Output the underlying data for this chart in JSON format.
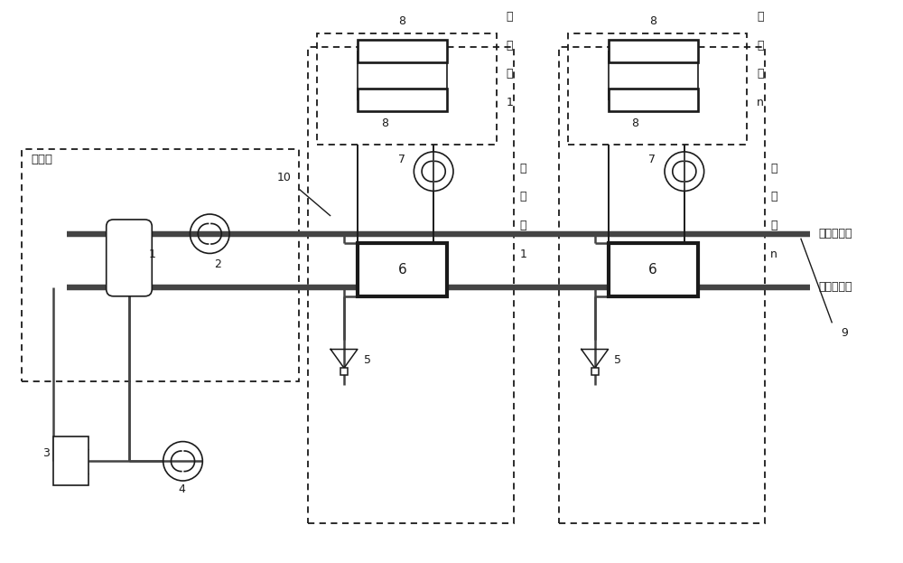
{
  "bg_color": "#ffffff",
  "line_color": "#1a1a1a",
  "thick_line_color": "#444444",
  "fig_width": 10.0,
  "fig_height": 6.23,
  "labels": {
    "reyuanc": "热源厂",
    "supply": "一次侧供水",
    "return": "一次侧回水",
    "hot1": [
      "热",
      "用",
      "户",
      "1"
    ],
    "hotn": [
      "热",
      "用",
      "户",
      "n"
    ],
    "heat1": [
      "换",
      "热",
      "站",
      "1"
    ],
    "heatn": [
      "换",
      "热",
      "站",
      "n"
    ]
  }
}
